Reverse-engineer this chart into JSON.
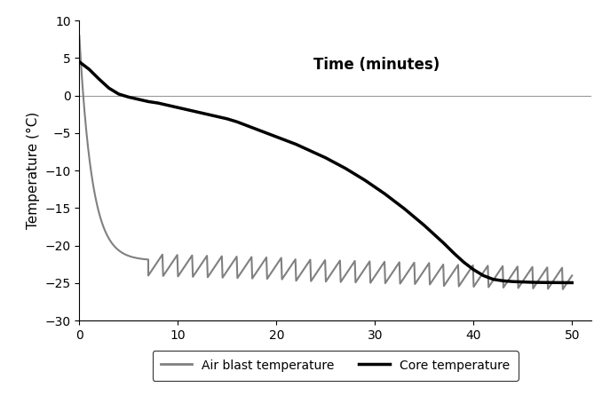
{
  "xlabel_text": "Time (minutes)",
  "ylabel": "Temperature (°C)",
  "xlim": [
    0,
    52
  ],
  "ylim": [
    -30,
    10
  ],
  "yticks": [
    -30,
    -25,
    -20,
    -15,
    -10,
    -5,
    0,
    5,
    10
  ],
  "xticks": [
    0,
    10,
    20,
    30,
    40,
    50
  ],
  "air_blast_color": "#808080",
  "core_color": "#000000",
  "legend_labels": [
    "Air blast temperature",
    "Core temperature"
  ],
  "background_color": "#ffffff",
  "core_x": [
    0,
    1,
    2,
    3,
    4,
    5,
    6,
    7,
    8,
    9,
    10,
    11,
    12,
    13,
    14,
    15,
    16,
    17,
    18,
    19,
    20,
    21,
    22,
    23,
    24,
    25,
    26,
    27,
    28,
    29,
    30,
    31,
    32,
    33,
    34,
    35,
    36,
    37,
    38,
    39,
    40,
    41,
    42,
    43,
    44,
    45,
    46,
    47,
    48,
    49,
    50
  ],
  "core_y": [
    4.5,
    3.5,
    2.2,
    1.0,
    0.2,
    -0.2,
    -0.5,
    -0.8,
    -1.0,
    -1.3,
    -1.6,
    -1.9,
    -2.2,
    -2.5,
    -2.8,
    -3.1,
    -3.5,
    -4.0,
    -4.5,
    -5.0,
    -5.5,
    -6.0,
    -6.5,
    -7.1,
    -7.7,
    -8.3,
    -9.0,
    -9.7,
    -10.5,
    -11.3,
    -12.2,
    -13.1,
    -14.1,
    -15.1,
    -16.2,
    -17.3,
    -18.5,
    -19.7,
    -21.0,
    -22.2,
    -23.2,
    -24.0,
    -24.5,
    -24.7,
    -24.8,
    -24.85,
    -24.9,
    -24.92,
    -24.93,
    -24.94,
    -24.95
  ]
}
